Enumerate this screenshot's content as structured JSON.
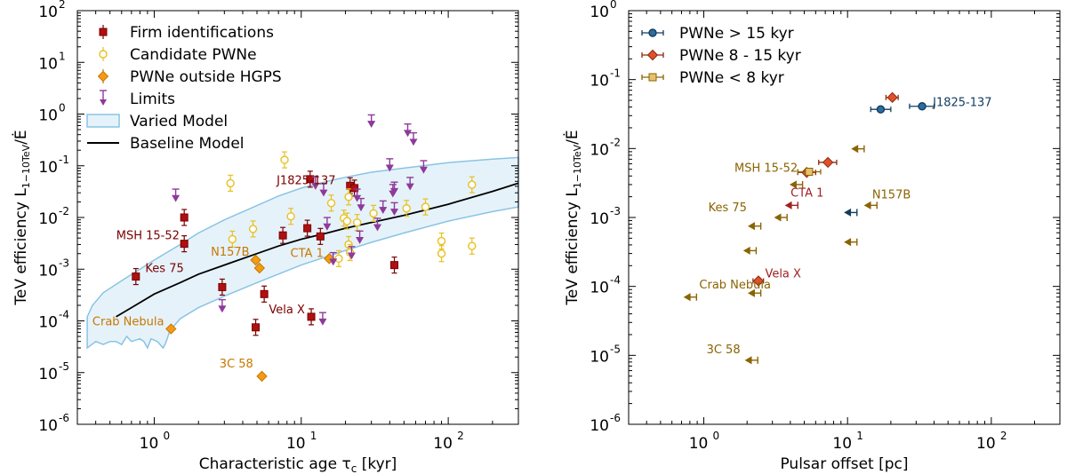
{
  "chart_data": [
    {
      "type": "scatter",
      "xscale": "log",
      "yscale": "log",
      "xlim": [
        0.3,
        300
      ],
      "ylim": [
        1e-06,
        100
      ],
      "xlabel": "Characteristic age τ",
      "xlabel_sub": "c",
      "xlabel_unit": " [kyr]",
      "ylabel": "TeV efficiency L",
      "ylabel_sub": "1−10TeV",
      "ylabel_tail": "/Ė",
      "legend_position": "top-left",
      "xticks": [
        {
          "v": 1,
          "mant": "10",
          "exp": "0"
        },
        {
          "v": 10,
          "mant": "10",
          "exp": "1"
        },
        {
          "v": 100,
          "mant": "10",
          "exp": "2"
        }
      ],
      "yticks": [
        {
          "v": 1e-06,
          "mant": "10",
          "exp": "-6"
        },
        {
          "v": 1e-05,
          "mant": "10",
          "exp": "-5"
        },
        {
          "v": 0.0001,
          "mant": "10",
          "exp": "-4"
        },
        {
          "v": 0.001,
          "mant": "10",
          "exp": "-3"
        },
        {
          "v": 0.01,
          "mant": "10",
          "exp": "-2"
        },
        {
          "v": 0.1,
          "mant": "10",
          "exp": "-1"
        },
        {
          "v": 1,
          "mant": "10",
          "exp": "0"
        },
        {
          "v": 10,
          "mant": "10",
          "exp": "1"
        },
        {
          "v": 100,
          "mant": "10",
          "exp": "2"
        }
      ],
      "band": {
        "name": "Varied Model",
        "fill": "#e6f2fa",
        "stroke": "#89c4e4",
        "upper": [
          [
            0.35,
            0.00012
          ],
          [
            0.38,
            0.0002
          ],
          [
            0.45,
            0.00035
          ],
          [
            0.6,
            0.0006
          ],
          [
            0.8,
            0.001
          ],
          [
            1.0,
            0.0015
          ],
          [
            1.5,
            0.003
          ],
          [
            2,
            0.005
          ],
          [
            3,
            0.009
          ],
          [
            5,
            0.017
          ],
          [
            7,
            0.026
          ],
          [
            10,
            0.037
          ],
          [
            15,
            0.05
          ],
          [
            20,
            0.06
          ],
          [
            30,
            0.075
          ],
          [
            50,
            0.09
          ],
          [
            100,
            0.115
          ],
          [
            200,
            0.135
          ],
          [
            300,
            0.145
          ]
        ],
        "lower": [
          [
            300,
            0.016
          ],
          [
            200,
            0.013
          ],
          [
            100,
            0.0085
          ],
          [
            50,
            0.005
          ],
          [
            30,
            0.0033
          ],
          [
            20,
            0.0023
          ],
          [
            10,
            0.0012
          ],
          [
            5,
            0.00055
          ],
          [
            3,
            0.0003
          ],
          [
            2,
            0.00018
          ],
          [
            1.5,
            0.00011
          ],
          [
            1.28,
            6.5e-05
          ],
          [
            1.2,
            3.8e-05
          ],
          [
            1.15,
            3e-05
          ],
          [
            1.05,
            4e-05
          ],
          [
            0.95,
            4.5e-05
          ],
          [
            0.9,
            3e-05
          ],
          [
            0.85,
            4e-05
          ],
          [
            0.8,
            4.5e-05
          ],
          [
            0.7,
            4e-05
          ],
          [
            0.65,
            5e-05
          ],
          [
            0.6,
            3.5e-05
          ],
          [
            0.55,
            4e-05
          ],
          [
            0.5,
            4e-05
          ],
          [
            0.45,
            3.5e-05
          ],
          [
            0.4,
            4e-05
          ],
          [
            0.35,
            3e-05
          ]
        ]
      },
      "baseline": {
        "name": "Baseline Model",
        "color": "#000000",
        "points": [
          [
            0.55,
            0.00012
          ],
          [
            0.7,
            0.00018
          ],
          [
            1,
            0.00033
          ],
          [
            1.5,
            0.00055
          ],
          [
            2,
            0.0008
          ],
          [
            3,
            0.0012
          ],
          [
            5,
            0.002
          ],
          [
            7,
            0.0028
          ],
          [
            10,
            0.0038
          ],
          [
            15,
            0.005
          ],
          [
            20,
            0.0062
          ],
          [
            30,
            0.008
          ],
          [
            50,
            0.011
          ],
          [
            100,
            0.018
          ],
          [
            200,
            0.032
          ],
          [
            300,
            0.046
          ]
        ]
      },
      "series": [
        {
          "name": "Firm identifications",
          "marker": "square",
          "color": "#b01010",
          "edge": "#7a0000",
          "points": [
            [
              0.75,
              0.00072
            ],
            [
              1.6,
              0.0031
            ],
            [
              1.6,
              0.01
            ],
            [
              2.9,
              0.00045
            ],
            [
              4.9,
              7.5e-05
            ],
            [
              5.6,
              0.00033
            ],
            [
              7.5,
              0.0045
            ],
            [
              11,
              0.0062
            ],
            [
              11.7,
              0.00012
            ],
            [
              13.5,
              0.0043
            ],
            [
              21.5,
              0.041
            ],
            [
              23,
              0.037
            ],
            [
              43,
              0.0012
            ],
            [
              11.5,
              0.055
            ]
          ]
        },
        {
          "name": "Candidate PWNe",
          "marker": "circle",
          "color": "#ffffff",
          "edge": "#e8c020",
          "points": [
            [
              3.3,
              0.046
            ],
            [
              3.4,
              0.0038
            ],
            [
              4.7,
              0.006
            ],
            [
              7.7,
              0.13
            ],
            [
              8.5,
              0.0105
            ],
            [
              16,
              0.019
            ],
            [
              19.5,
              0.0097
            ],
            [
              20.5,
              0.0085
            ],
            [
              21,
              0.025
            ],
            [
              21,
              0.003
            ],
            [
              21.5,
              0.0021
            ],
            [
              24,
              0.008
            ],
            [
              31,
              0.012
            ],
            [
              52,
              0.015
            ],
            [
              70,
              0.016
            ],
            [
              90,
              0.0035
            ],
            [
              90,
              0.002
            ],
            [
              145,
              0.043
            ],
            [
              145,
              0.0028
            ],
            [
              18,
              0.0016
            ]
          ]
        },
        {
          "name": "PWNe outside HGPS",
          "marker": "diamond",
          "color": "#f39c12",
          "edge": "#c77700",
          "points": [
            [
              1.3,
              7e-05
            ],
            [
              4.9,
              0.0015
            ],
            [
              5.2,
              0.00105
            ],
            [
              5.4,
              8.5e-06
            ],
            [
              15.5,
              0.0016
            ]
          ]
        },
        {
          "name": "Limits",
          "marker": "arrow-down",
          "color": "#8e3a9a",
          "edge": "#8e3a9a",
          "points": [
            [
              1.4,
              0.022
            ],
            [
              2.9,
              0.00016
            ],
            [
              12.5,
              0.038
            ],
            [
              14,
              9e-05
            ],
            [
              14.2,
              0.028
            ],
            [
              15,
              0.0062
            ],
            [
              16.5,
              0.0013
            ],
            [
              24,
              0.022
            ],
            [
              25,
              0.0034
            ],
            [
              25.5,
              0.0145
            ],
            [
              30,
              0.6
            ],
            [
              33,
              0.006
            ],
            [
              36,
              0.013
            ],
            [
              40,
              0.085
            ],
            [
              42,
              0.027
            ],
            [
              43,
              0.03
            ],
            [
              43,
              0.012
            ],
            [
              53,
              0.4
            ],
            [
              55,
              0.037
            ],
            [
              58,
              0.27
            ],
            [
              68,
              0.078
            ],
            [
              22,
              0.0017
            ]
          ]
        }
      ],
      "annotations": [
        {
          "text": "J1825-137",
          "x": 10.8,
          "y": 0.052,
          "color": "#7a0000",
          "anchor": "middle",
          "dx": 0,
          "dy": 4
        },
        {
          "text": "MSH 15-52",
          "x": 1.55,
          "y": 0.0031,
          "color": "#7a0000",
          "anchor": "end",
          "dx": -3,
          "dy": -5
        },
        {
          "text": "Kes 75",
          "x": 0.8,
          "y": 0.00072,
          "color": "#7a0000",
          "anchor": "start",
          "dx": 6,
          "dy": -5
        },
        {
          "text": "Vela X",
          "x": 11.2,
          "y": 0.00012,
          "color": "#7a0000",
          "anchor": "end",
          "dx": -4,
          "dy": -4
        },
        {
          "text": "Crab Nebula",
          "x": 1.25,
          "y": 7e-05,
          "color": "#c77700",
          "anchor": "end",
          "dx": -5,
          "dy": -4
        },
        {
          "text": "N157B",
          "x": 4.7,
          "y": 0.0015,
          "color": "#c77700",
          "anchor": "end",
          "dx": -4,
          "dy": -5
        },
        {
          "text": "CTA 1",
          "x": 15.2,
          "y": 0.0016,
          "color": "#c77700",
          "anchor": "end",
          "dx": -5,
          "dy": -2
        },
        {
          "text": "3C 58",
          "x": 5.2,
          "y": 8.5e-06,
          "color": "#c77700",
          "anchor": "end",
          "dx": -7,
          "dy": -10
        }
      ]
    },
    {
      "type": "scatter",
      "xscale": "log",
      "yscale": "log",
      "xlim": [
        0.3,
        300
      ],
      "ylim": [
        1e-06,
        1
      ],
      "xlabel": "Pulsar offset [pc]",
      "xlabel_sub": "",
      "xlabel_unit": "",
      "ylabel": "TeV efficiency L",
      "ylabel_sub": "1−10TeV",
      "ylabel_tail": "/Ė",
      "legend_position": "top-left",
      "xticks": [
        {
          "v": 1,
          "mant": "10",
          "exp": "0"
        },
        {
          "v": 10,
          "mant": "10",
          "exp": "1"
        },
        {
          "v": 100,
          "mant": "10",
          "exp": "2"
        }
      ],
      "yticks": [
        {
          "v": 1e-06,
          "mant": "10",
          "exp": "-6"
        },
        {
          "v": 1e-05,
          "mant": "10",
          "exp": "-5"
        },
        {
          "v": 0.0001,
          "mant": "10",
          "exp": "-4"
        },
        {
          "v": 0.001,
          "mant": "10",
          "exp": "-3"
        },
        {
          "v": 0.01,
          "mant": "10",
          "exp": "-2"
        },
        {
          "v": 0.1,
          "mant": "10",
          "exp": "-1"
        },
        {
          "v": 1,
          "mant": "10",
          "exp": "0"
        }
      ],
      "series": [
        {
          "name": "PWNe > 15 kyr",
          "marker": "circle",
          "color": "#2c6e9e",
          "edge": "#123c60",
          "points": [
            [
              17,
              0.037
            ],
            [
              33,
              0.041
            ]
          ],
          "xerr": [
            [
              14.5,
              20
            ],
            [
              27,
              40
            ]
          ]
        },
        {
          "name": "PWNe 8 - 15 kyr",
          "marker": "diamond",
          "color": "#e0502a",
          "edge": "#8a2a10",
          "points": [
            [
              2.4,
              0.00012
            ],
            [
              5.2,
              0.0045
            ],
            [
              7.3,
              0.0063
            ],
            [
              20.5,
              0.055
            ]
          ],
          "xerr": [
            [
              2.2,
              2.6
            ],
            [
              4.5,
              6
            ],
            [
              6.3,
              8.4
            ],
            [
              18.5,
              22.5
            ]
          ]
        },
        {
          "name": "PWNe < 8 kyr",
          "marker": "square",
          "color": "#e8c070",
          "edge": "#8a6400",
          "points": [
            [
              5.4,
              0.0046
            ]
          ],
          "xerr": [
            [
              4.5,
              6.5
            ]
          ]
        }
      ],
      "limit_arrows": [
        {
          "x": 0.75,
          "y": 7e-05,
          "color": "#8a6400"
        },
        {
          "x": 2.1,
          "y": 8e-05,
          "color": "#8a6400"
        },
        {
          "x": 2.1,
          "y": 0.00075,
          "color": "#8a6400"
        },
        {
          "x": 1.95,
          "y": 0.00033,
          "color": "#8a6400"
        },
        {
          "x": 2.0,
          "y": 8.5e-06,
          "color": "#8a6400"
        },
        {
          "x": 3.2,
          "y": 0.001,
          "color": "#8a6400"
        },
        {
          "x": 4.1,
          "y": 0.003,
          "color": "#8a6400"
        },
        {
          "x": 3.8,
          "y": 0.0015,
          "color": "#a02020"
        },
        {
          "x": 11,
          "y": 0.0099,
          "color": "#8a6400"
        },
        {
          "x": 13.5,
          "y": 0.0015,
          "color": "#8a6400"
        },
        {
          "x": 9.8,
          "y": 0.00044,
          "color": "#8a6400"
        },
        {
          "x": 9.8,
          "y": 0.00118,
          "color": "#123c60"
        }
      ],
      "annotations": [
        {
          "text": "J1825-137",
          "x": 36,
          "y": 0.041,
          "color": "#123c60",
          "anchor": "start",
          "dx": 6,
          "dy": 0
        },
        {
          "text": "MSH 15-52",
          "x": 4.7,
          "y": 0.0046,
          "color": "#8a6400",
          "anchor": "end",
          "dx": -3,
          "dy": 0
        },
        {
          "text": "CTA 1",
          "x": 3.9,
          "y": 0.002,
          "color": "#a02020",
          "anchor": "start",
          "dx": 2,
          "dy": 0
        },
        {
          "text": "N157B",
          "x": 14,
          "y": 0.002,
          "color": "#8a6400",
          "anchor": "start",
          "dx": 4,
          "dy": 2
        },
        {
          "text": "Kes 75",
          "x": 2.05,
          "y": 0.0011,
          "color": "#8a6400",
          "anchor": "end",
          "dx": -2,
          "dy": -4
        },
        {
          "text": "Vela X",
          "x": 2.45,
          "y": 0.00012,
          "color": "#a02020",
          "anchor": "start",
          "dx": 6,
          "dy": -4
        },
        {
          "text": "Crab Nebula",
          "x": 1.65,
          "y": 8.3e-05,
          "color": "#8a6400",
          "anchor": "middle",
          "dx": 0,
          "dy": -4
        },
        {
          "text": "3C 58",
          "x": 1.9,
          "y": 8.5e-06,
          "color": "#8a6400",
          "anchor": "end",
          "dx": -4,
          "dy": -8
        }
      ]
    }
  ]
}
